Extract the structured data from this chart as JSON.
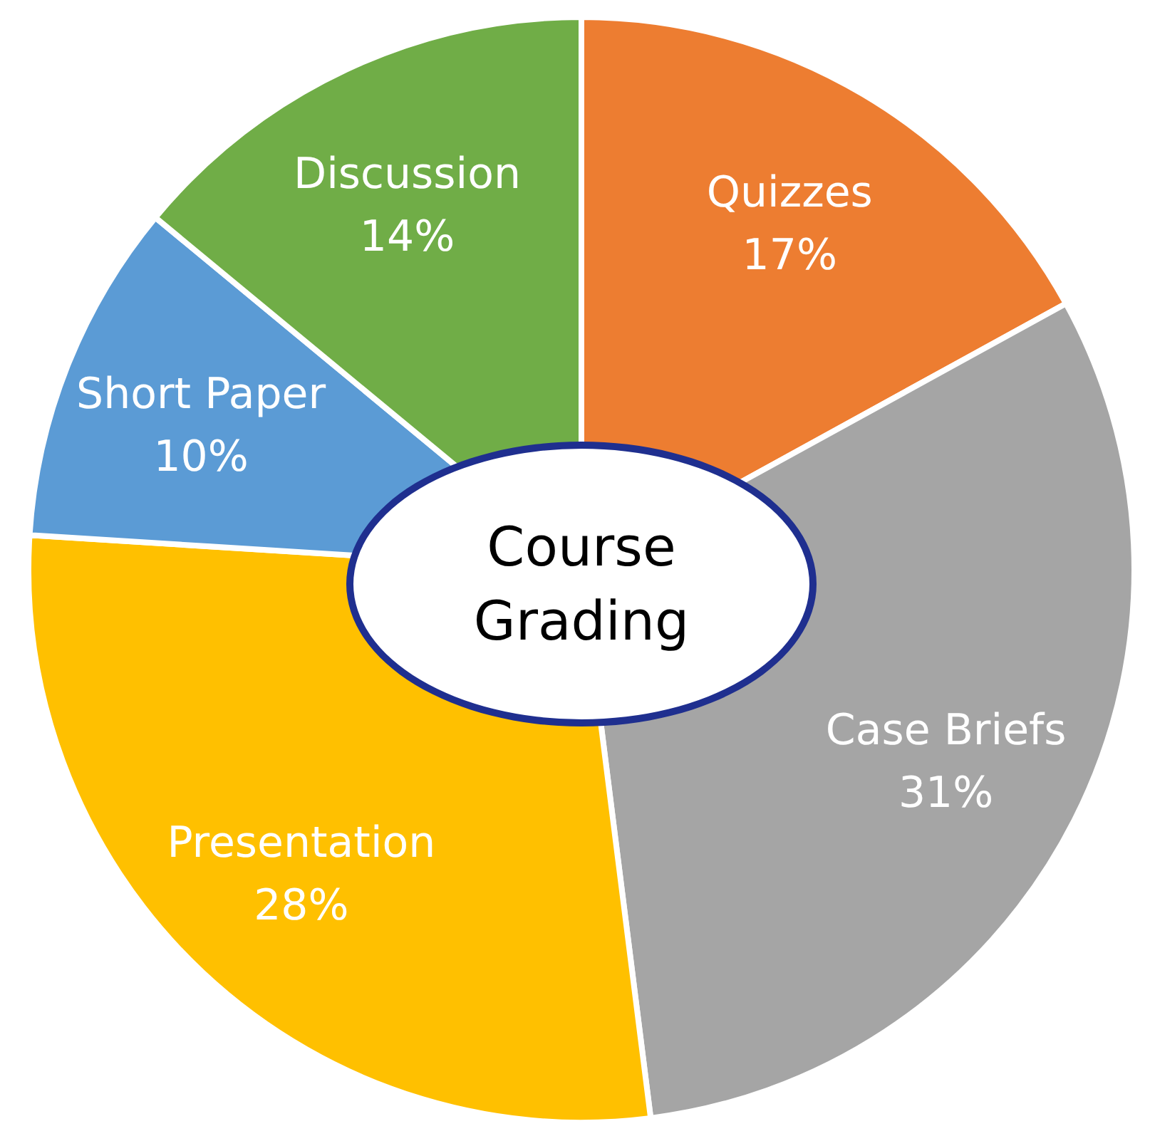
{
  "chart_data": {
    "type": "pie",
    "title": "Course Grading",
    "categories": [
      "Quizzes",
      "Case Briefs",
      "Presentation",
      "Short Paper",
      "Discussion"
    ],
    "values": [
      17,
      31,
      28,
      10,
      14
    ],
    "value_labels": [
      "17%",
      "31%",
      "28%",
      "10%",
      "14%"
    ],
    "colors": [
      "#ed7d31",
      "#a5a5a5",
      "#ffc000",
      "#5b9bd5",
      "#70ad47"
    ],
    "legend": false
  }
}
